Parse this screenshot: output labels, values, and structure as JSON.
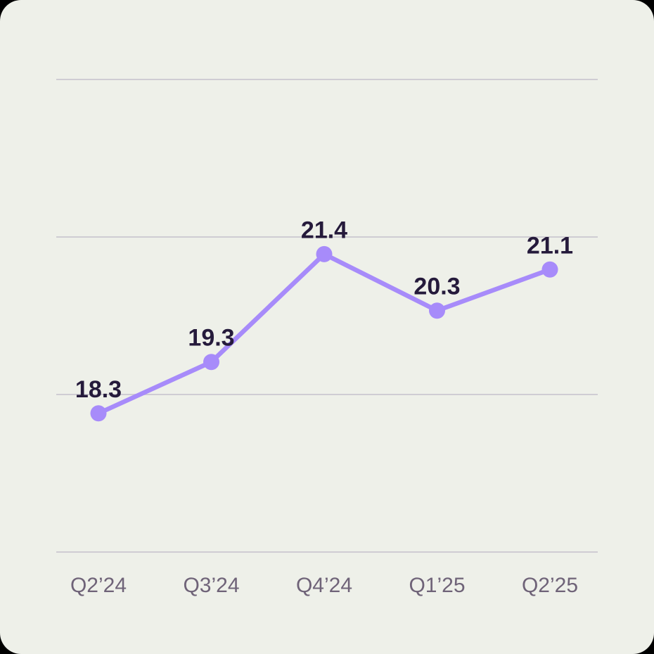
{
  "chart_data": {
    "type": "line",
    "title": "",
    "xlabel": "",
    "ylabel": "",
    "categories": [
      "Q2’24",
      "Q3’24",
      "Q4’24",
      "Q1’25",
      "Q2’25"
    ],
    "values": [
      18.3,
      19.3,
      21.4,
      20.3,
      21.1
    ],
    "value_labels": [
      "18.3",
      "19.3",
      "21.4",
      "20.3",
      "21.1"
    ],
    "ylim": [
      15.6,
      24.8
    ],
    "grid": "horizontal",
    "gridline_count": 4,
    "legend": "none",
    "theme": {
      "card_background": "#eef0e9",
      "page_background": "#000000",
      "line_color": "#a78bfa",
      "point_color": "#a78bfa",
      "value_label_color": "#251a3b",
      "axis_label_color": "#6f6378",
      "gridline_color": "#cfccd3"
    }
  }
}
